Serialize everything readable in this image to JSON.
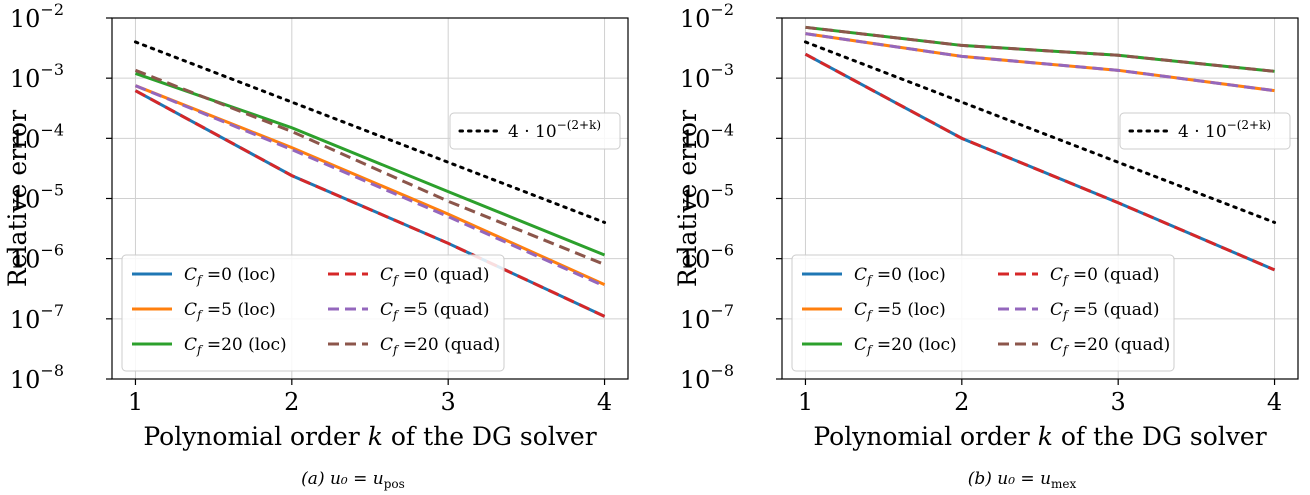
{
  "colors": {
    "C0": "#1f77b4",
    "C1": "#ff7f0e",
    "C2": "#2ca02c",
    "C3": "#d62728",
    "C4": "#9467bd",
    "C5": "#8c564b",
    "ref": "#000000",
    "grid": "#d0d0d0"
  },
  "chart_data": [
    {
      "type": "line",
      "caption": "(a) u₀ = u_pos",
      "xlabel": "Polynomial order k of the DG solver",
      "ylabel": "Relative error",
      "x": [
        1,
        2,
        3,
        4
      ],
      "xlim": [
        0.85,
        4.15
      ],
      "ylim": [
        1e-08,
        0.01
      ],
      "yscale": "log",
      "grid": true,
      "xticks": [
        "1",
        "2",
        "3",
        "4"
      ],
      "yticks": [
        {
          "base": "10",
          "exp": "−8"
        },
        {
          "base": "10",
          "exp": "−7"
        },
        {
          "base": "10",
          "exp": "−6"
        },
        {
          "base": "10",
          "exp": "−5"
        },
        {
          "base": "10",
          "exp": "−4"
        },
        {
          "base": "10",
          "exp": "−3"
        },
        {
          "base": "10",
          "exp": "−2"
        }
      ],
      "series": [
        {
          "name": "C_f =0 (loc)",
          "color": "C0",
          "dash": "solid",
          "values": [
            0.00062,
            2.4e-05,
            1.8e-06,
            1.1e-07
          ]
        },
        {
          "name": "C_f =5 (loc)",
          "color": "C1",
          "dash": "solid",
          "values": [
            0.00075,
            7e-05,
            5.5e-06,
            3.7e-07
          ]
        },
        {
          "name": "C_f =20 (loc)",
          "color": "C2",
          "dash": "solid",
          "values": [
            0.0012,
            0.00015,
            1.3e-05,
            1.15e-06
          ]
        },
        {
          "name": "C_f =0 (quad)",
          "color": "C3",
          "dash": "dashed",
          "values": [
            0.00062,
            2.4e-05,
            1.8e-06,
            1.1e-07
          ]
        },
        {
          "name": "C_f =5 (quad)",
          "color": "C4",
          "dash": "dashed",
          "values": [
            0.00075,
            6.5e-05,
            5e-06,
            3.5e-07
          ]
        },
        {
          "name": "C_f =20 (quad)",
          "color": "C5",
          "dash": "dashed",
          "values": [
            0.00135,
            0.00013,
            9e-06,
            8e-07
          ]
        },
        {
          "name": "4 · 10^−(2+k)",
          "color": "ref",
          "dash": "dotted",
          "values": [
            0.004,
            0.0004,
            4e-05,
            4e-06
          ]
        }
      ],
      "legend_main": "lower-left",
      "legend_ref": "right"
    },
    {
      "type": "line",
      "caption": "(b) u₀ = u_mex",
      "xlabel": "Polynomial order k of the DG solver",
      "ylabel": "Relative error",
      "x": [
        1,
        2,
        3,
        4
      ],
      "xlim": [
        0.85,
        4.15
      ],
      "ylim": [
        1e-08,
        0.01
      ],
      "yscale": "log",
      "grid": true,
      "xticks": [
        "1",
        "2",
        "3",
        "4"
      ],
      "yticks": [
        {
          "base": "10",
          "exp": "−8"
        },
        {
          "base": "10",
          "exp": "−7"
        },
        {
          "base": "10",
          "exp": "−6"
        },
        {
          "base": "10",
          "exp": "−5"
        },
        {
          "base": "10",
          "exp": "−4"
        },
        {
          "base": "10",
          "exp": "−3"
        },
        {
          "base": "10",
          "exp": "−2"
        }
      ],
      "series": [
        {
          "name": "C_f =0 (loc)",
          "color": "C0",
          "dash": "solid",
          "values": [
            0.0025,
            0.0001,
            8.5e-06,
            6.5e-07
          ]
        },
        {
          "name": "C_f =5 (loc)",
          "color": "C1",
          "dash": "solid",
          "values": [
            0.0055,
            0.0023,
            0.00135,
            0.00062
          ]
        },
        {
          "name": "C_f =20 (loc)",
          "color": "C2",
          "dash": "solid",
          "values": [
            0.007,
            0.0035,
            0.0024,
            0.0013
          ]
        },
        {
          "name": "C_f =0 (quad)",
          "color": "C3",
          "dash": "dashed",
          "values": [
            0.0025,
            0.0001,
            8.5e-06,
            6.5e-07
          ]
        },
        {
          "name": "C_f =5 (quad)",
          "color": "C4",
          "dash": "dashed",
          "values": [
            0.0055,
            0.0023,
            0.00135,
            0.00062
          ]
        },
        {
          "name": "C_f =20 (quad)",
          "color": "C5",
          "dash": "dashed",
          "values": [
            0.007,
            0.0035,
            0.0024,
            0.0013
          ]
        },
        {
          "name": "4 · 10^−(2+k)",
          "color": "ref",
          "dash": "dotted",
          "values": [
            0.004,
            0.0004,
            4e-05,
            4e-06
          ]
        }
      ],
      "legend_main": "lower-left",
      "legend_ref": "right"
    }
  ]
}
